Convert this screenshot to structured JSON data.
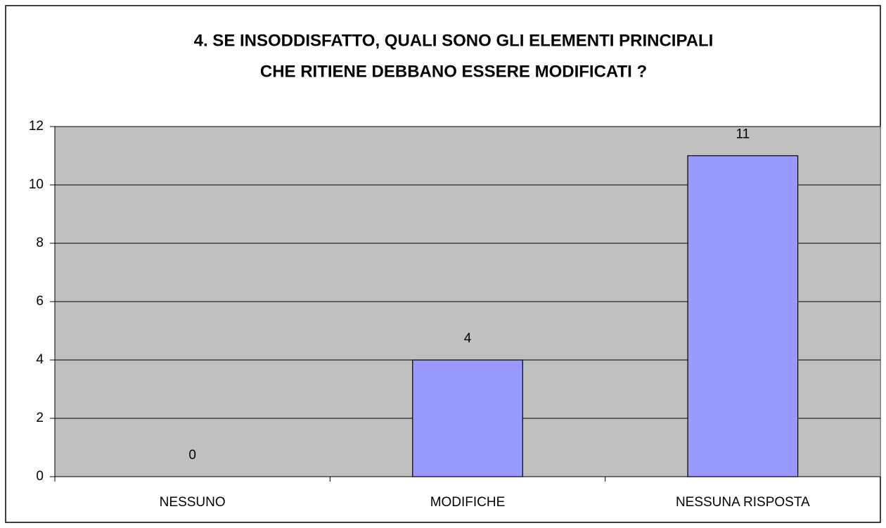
{
  "chart_data": {
    "type": "bar",
    "title": [
      "4. SE INSODDISFATTO, QUALI SONO GLI ELEMENTI PRINCIPALI",
      "CHE RITIENE DEBBANO ESSERE MODIFICATI ?"
    ],
    "categories": [
      "NESSUNO",
      "MODIFICHE",
      "NESSUNA RISPOSTA"
    ],
    "values": [
      0,
      4,
      11
    ],
    "color": "#9999ff",
    "ylim": [
      0,
      12
    ],
    "yticks": [
      0,
      2,
      4,
      6,
      8,
      10,
      12
    ],
    "grid": true
  }
}
